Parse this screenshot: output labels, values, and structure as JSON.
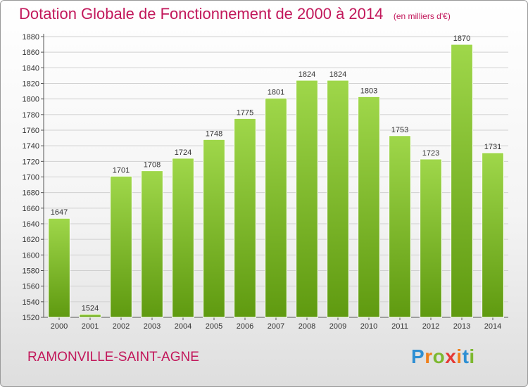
{
  "chart_data": {
    "type": "bar",
    "title": "Dotation Globale de Fonctionnement de 2000 à 2014",
    "unit_note": "(en milliers d'€)",
    "xlabel": "",
    "ylabel": "",
    "categories": [
      "2000",
      "2001",
      "2002",
      "2003",
      "2004",
      "2005",
      "2006",
      "2007",
      "2008",
      "2009",
      "2010",
      "2011",
      "2012",
      "2013",
      "2014"
    ],
    "values": [
      1647,
      1524,
      1701,
      1708,
      1724,
      1748,
      1775,
      1801,
      1824,
      1824,
      1803,
      1753,
      1723,
      1870,
      1731
    ],
    "ylim": [
      1520,
      1880
    ],
    "yticks": [
      1520,
      1540,
      1560,
      1580,
      1600,
      1620,
      1640,
      1660,
      1680,
      1700,
      1720,
      1740,
      1760,
      1780,
      1800,
      1820,
      1840,
      1860,
      1880
    ],
    "grid": true,
    "colors": {
      "bar_top": "#9fd74a",
      "bar_bottom": "#5f9a10",
      "title": "#c2185b",
      "grid": "#d0d0d0"
    }
  },
  "footer": {
    "city": "RAMONVILLE-SAINT-AGNE",
    "brand_letters": [
      "P",
      "r",
      "o",
      "x",
      "i",
      "t",
      "i"
    ],
    "brand_colors": [
      "#2e8fd3",
      "#f07f1a",
      "#7cb82f",
      "#e53935",
      "#f07f1a",
      "#2e8fd3",
      "#7cb82f"
    ]
  }
}
